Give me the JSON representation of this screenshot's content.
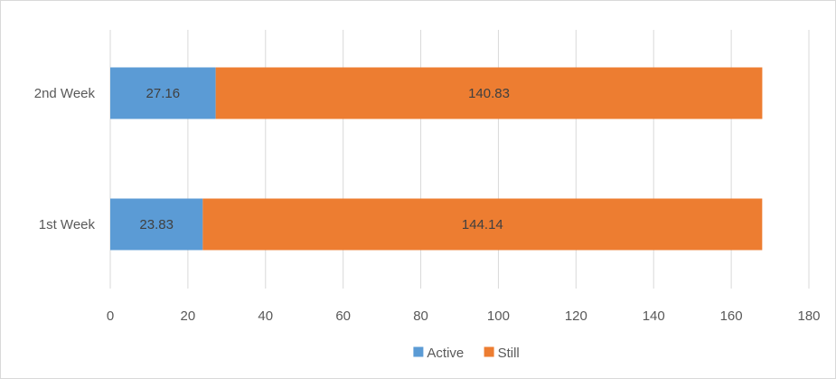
{
  "chart_data": {
    "type": "bar",
    "orientation": "horizontal",
    "stacked": true,
    "categories": [
      "2nd Week",
      "1st Week"
    ],
    "series": [
      {
        "name": "Active",
        "values": [
          27.16,
          23.83
        ],
        "color": "#5b9bd5"
      },
      {
        "name": "Still",
        "values": [
          140.83,
          144.14
        ],
        "color": "#ed7d31"
      }
    ],
    "x_ticks": [
      "0",
      "20",
      "40",
      "60",
      "80",
      "100",
      "120",
      "140",
      "160",
      "180"
    ],
    "xlim": [
      0,
      180
    ],
    "grid": true,
    "legend_position": "bottom",
    "title": "",
    "xlabel": "",
    "ylabel": ""
  }
}
